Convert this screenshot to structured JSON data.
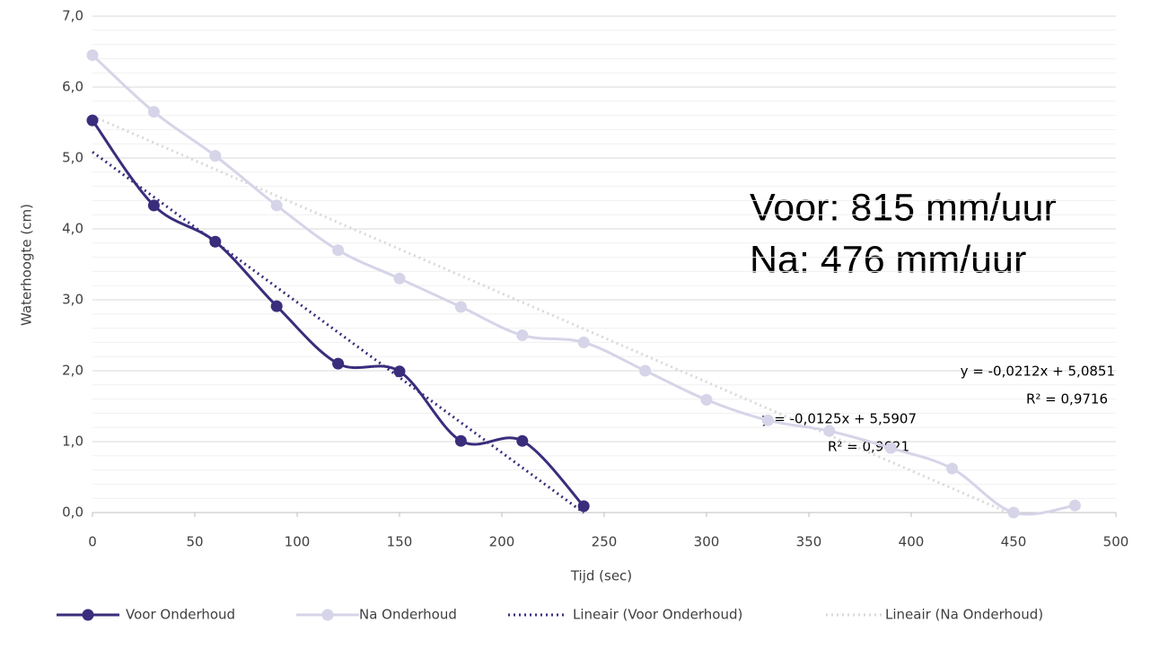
{
  "chart_data": {
    "type": "line",
    "x_label": "Tijd (sec)",
    "y_label": "Waterhoogte (cm)",
    "xlim": [
      0,
      500
    ],
    "xticks": [
      0,
      50,
      100,
      150,
      200,
      250,
      300,
      350,
      400,
      450,
      500
    ],
    "ylim": [
      0,
      7
    ],
    "yticks": [
      {
        "value": 0,
        "label": "0,0"
      },
      {
        "value": 1,
        "label": "1,0"
      },
      {
        "value": 2,
        "label": "2,0"
      },
      {
        "value": 3,
        "label": "3,0"
      },
      {
        "value": 4,
        "label": "4,0"
      },
      {
        "value": 5,
        "label": "5,0"
      },
      {
        "value": 6,
        "label": "6,0"
      },
      {
        "value": 7,
        "label": "7,0"
      }
    ],
    "grid": true,
    "minor_grid_step": 0.2,
    "smooth": true,
    "legend": "bottom",
    "series": [
      {
        "name": "Voor Onderhoud",
        "color": "#3a2d7c",
        "x": [
          0,
          30,
          60,
          90,
          120,
          150,
          180,
          210,
          240
        ],
        "values": [
          5.53,
          4.33,
          3.82,
          2.91,
          2.1,
          1.99,
          1.01,
          1.01,
          0.09
        ]
      },
      {
        "name": "Na Onderhoud",
        "color": "#d6d4e8",
        "x": [
          0,
          30,
          60,
          90,
          120,
          150,
          180,
          210,
          240,
          270,
          300,
          330,
          360,
          390,
          420,
          450,
          480
        ],
        "values": [
          6.45,
          5.65,
          5.03,
          4.33,
          3.7,
          3.3,
          2.9,
          2.5,
          2.4,
          2.0,
          1.59,
          1.3,
          1.15,
          0.91,
          0.62,
          0.0,
          0.1
        ]
      }
    ],
    "trendlines": [
      {
        "name": "Lineair (Voor Onderhoud)",
        "color": "#3a2d7c",
        "slope": -0.0212,
        "intercept": 5.0851,
        "x_end": 240,
        "equation": "y = -0,0212x + 5,0851",
        "r2": "R² = 0,9716"
      },
      {
        "name": "Lineair (Na Onderhoud)",
        "color": "#d9d9d9",
        "slope": -0.0125,
        "intercept": 5.5907,
        "x_end": 447,
        "equation": "y = -0,0125x + 5,5907",
        "r2": "R² = 0,9621"
      }
    ],
    "annotations": [
      "Voor: 815 mm/uur",
      "Na: 476 mm/uur"
    ]
  }
}
